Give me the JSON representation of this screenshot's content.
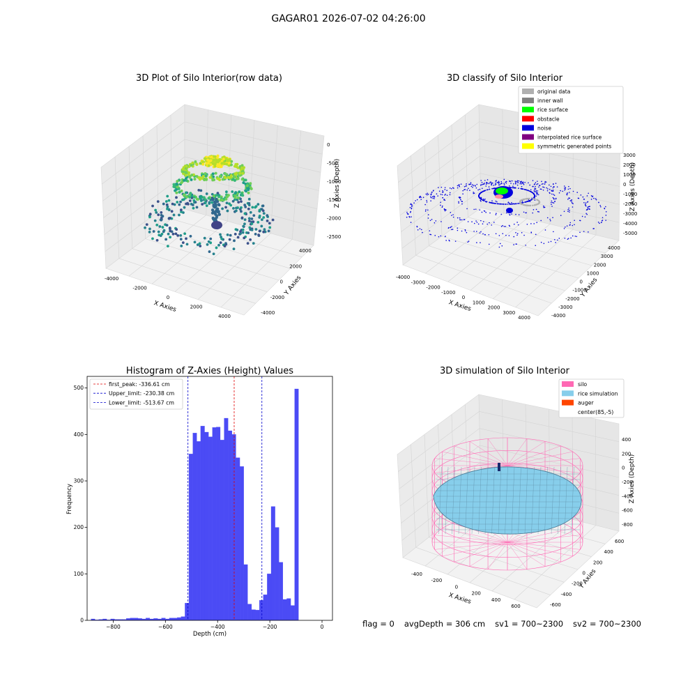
{
  "figure": {
    "suptitle": "GAGAR01 2026-07-02 04:26:00",
    "status": {
      "flag": "flag = 0",
      "avg_depth": "avgDepth = 306 cm",
      "sv1": "sv1 = 700~2300",
      "sv2": "sv2 = 700~2300"
    }
  },
  "colors": {
    "hist_bar": "#4b4bf5",
    "peak_line": "#e00000",
    "limit_line": "#0000cc",
    "original": "#b0b0b0",
    "inner_wall": "#808080",
    "rice_surface": "#00ff00",
    "obstacle": "#ff0000",
    "noise": "#0000dd",
    "interpolated": "#800080",
    "symmetric": "#ffff00",
    "silo": "#ff69b4",
    "rice_sim": "#87ceeb",
    "auger": "#ff4500"
  },
  "chart_data": [
    {
      "type": "scatter",
      "title": "3D Plot of Silo Interior(row data)",
      "xlabel": "X Axies",
      "ylabel": "Y Axies",
      "zlabel": "Z Axies (Depth)",
      "x_ticks": [
        "-4000",
        "-2000",
        "0",
        "2000",
        "4000"
      ],
      "y_ticks": [
        "-4000",
        "-2000",
        "0",
        "2000",
        "4000"
      ],
      "z_ticks": [
        "0",
        "-500",
        "-1000",
        "-1500",
        "-2000",
        "-2500"
      ],
      "grid": true,
      "colormap": "viridis"
    },
    {
      "type": "scatter",
      "title": "3D classify of Silo Interior",
      "xlabel": "X Axies",
      "ylabel": "Y Axies",
      "zlabel": "Z Axies (Depth)",
      "x_ticks": [
        "-4000",
        "-3000",
        "-2000",
        "-1000",
        "0",
        "1000",
        "2000",
        "3000",
        "4000"
      ],
      "y_ticks": [
        "4000",
        "3000",
        "2000",
        "1000",
        "0",
        "-1000",
        "-2000",
        "-3000",
        "-4000"
      ],
      "z_ticks": [
        "3000",
        "2000",
        "1000",
        "0",
        "-1000",
        "-2000",
        "-3000",
        "-4000",
        "-5000"
      ],
      "legend": [
        "original data",
        "inner wall",
        "rice surface",
        "obstacle",
        "noise",
        "interpolated rice surface",
        "symmetric generated points"
      ],
      "legend_position": "top-right",
      "grid": true
    },
    {
      "type": "bar",
      "title": "Histogram of Z-Axies (Height) Values",
      "xlabel": "Depth (cm)",
      "ylabel": "Frequency",
      "xlim": [
        -900,
        40
      ],
      "ylim": [
        0,
        525
      ],
      "x_ticks": [
        -800,
        -600,
        -400,
        -200,
        0
      ],
      "y_ticks": [
        0,
        100,
        200,
        300,
        400,
        500
      ],
      "bin_width": 15,
      "bins": [
        [
          -885,
          3
        ],
        [
          -870,
          1
        ],
        [
          -855,
          2
        ],
        [
          -840,
          3
        ],
        [
          -825,
          1
        ],
        [
          -810,
          3
        ],
        [
          -795,
          2
        ],
        [
          -780,
          2
        ],
        [
          -765,
          2
        ],
        [
          -750,
          4
        ],
        [
          -735,
          5
        ],
        [
          -720,
          5
        ],
        [
          -705,
          4
        ],
        [
          -690,
          3
        ],
        [
          -675,
          5
        ],
        [
          -660,
          3
        ],
        [
          -645,
          4
        ],
        [
          -630,
          3
        ],
        [
          -615,
          5
        ],
        [
          -600,
          3
        ],
        [
          -585,
          5
        ],
        [
          -570,
          5
        ],
        [
          -555,
          6
        ],
        [
          -540,
          8
        ],
        [
          -525,
          37
        ],
        [
          -510,
          358
        ],
        [
          -495,
          403
        ],
        [
          -480,
          385
        ],
        [
          -465,
          418
        ],
        [
          -450,
          405
        ],
        [
          -435,
          395
        ],
        [
          -420,
          415
        ],
        [
          -405,
          416
        ],
        [
          -390,
          388
        ],
        [
          -375,
          435
        ],
        [
          -360,
          408
        ],
        [
          -345,
          400
        ],
        [
          -330,
          350
        ],
        [
          -315,
          331
        ],
        [
          -300,
          120
        ],
        [
          -285,
          35
        ],
        [
          -270,
          23
        ],
        [
          -255,
          22
        ],
        [
          -240,
          43
        ],
        [
          -225,
          55
        ],
        [
          -210,
          100
        ],
        [
          -195,
          245
        ],
        [
          -180,
          200
        ],
        [
          -165,
          125
        ],
        [
          -150,
          45
        ],
        [
          -135,
          47
        ],
        [
          -120,
          32
        ],
        [
          -105,
          498
        ]
      ],
      "lines": [
        {
          "label": "first_peak: -336.61 cm",
          "x": -336.61,
          "style": "peak"
        },
        {
          "label": "Upper_limit: -230.38 cm",
          "x": -230.38,
          "style": "limit"
        },
        {
          "label": "Lower_limit: -513.67 cm",
          "x": -513.67,
          "style": "limit"
        }
      ],
      "legend_position": "top-left"
    },
    {
      "type": "area",
      "title": "3D simulation of Silo Interior",
      "xlabel": "X Axies",
      "ylabel": "Y Axies",
      "zlabel": "Z Axies (Depth)",
      "x_ticks": [
        "-400",
        "-200",
        "0",
        "200",
        "400",
        "600"
      ],
      "y_ticks": [
        "600",
        "400",
        "200",
        "0",
        "-200",
        "-400",
        "-600"
      ],
      "z_ticks": [
        "400",
        "200",
        "0",
        "-200",
        "-400",
        "-600",
        "-800"
      ],
      "legend": [
        "silo",
        "rice simulation",
        "auger",
        "center(85,-5)"
      ],
      "legend_position": "top-right",
      "grid": true
    }
  ]
}
